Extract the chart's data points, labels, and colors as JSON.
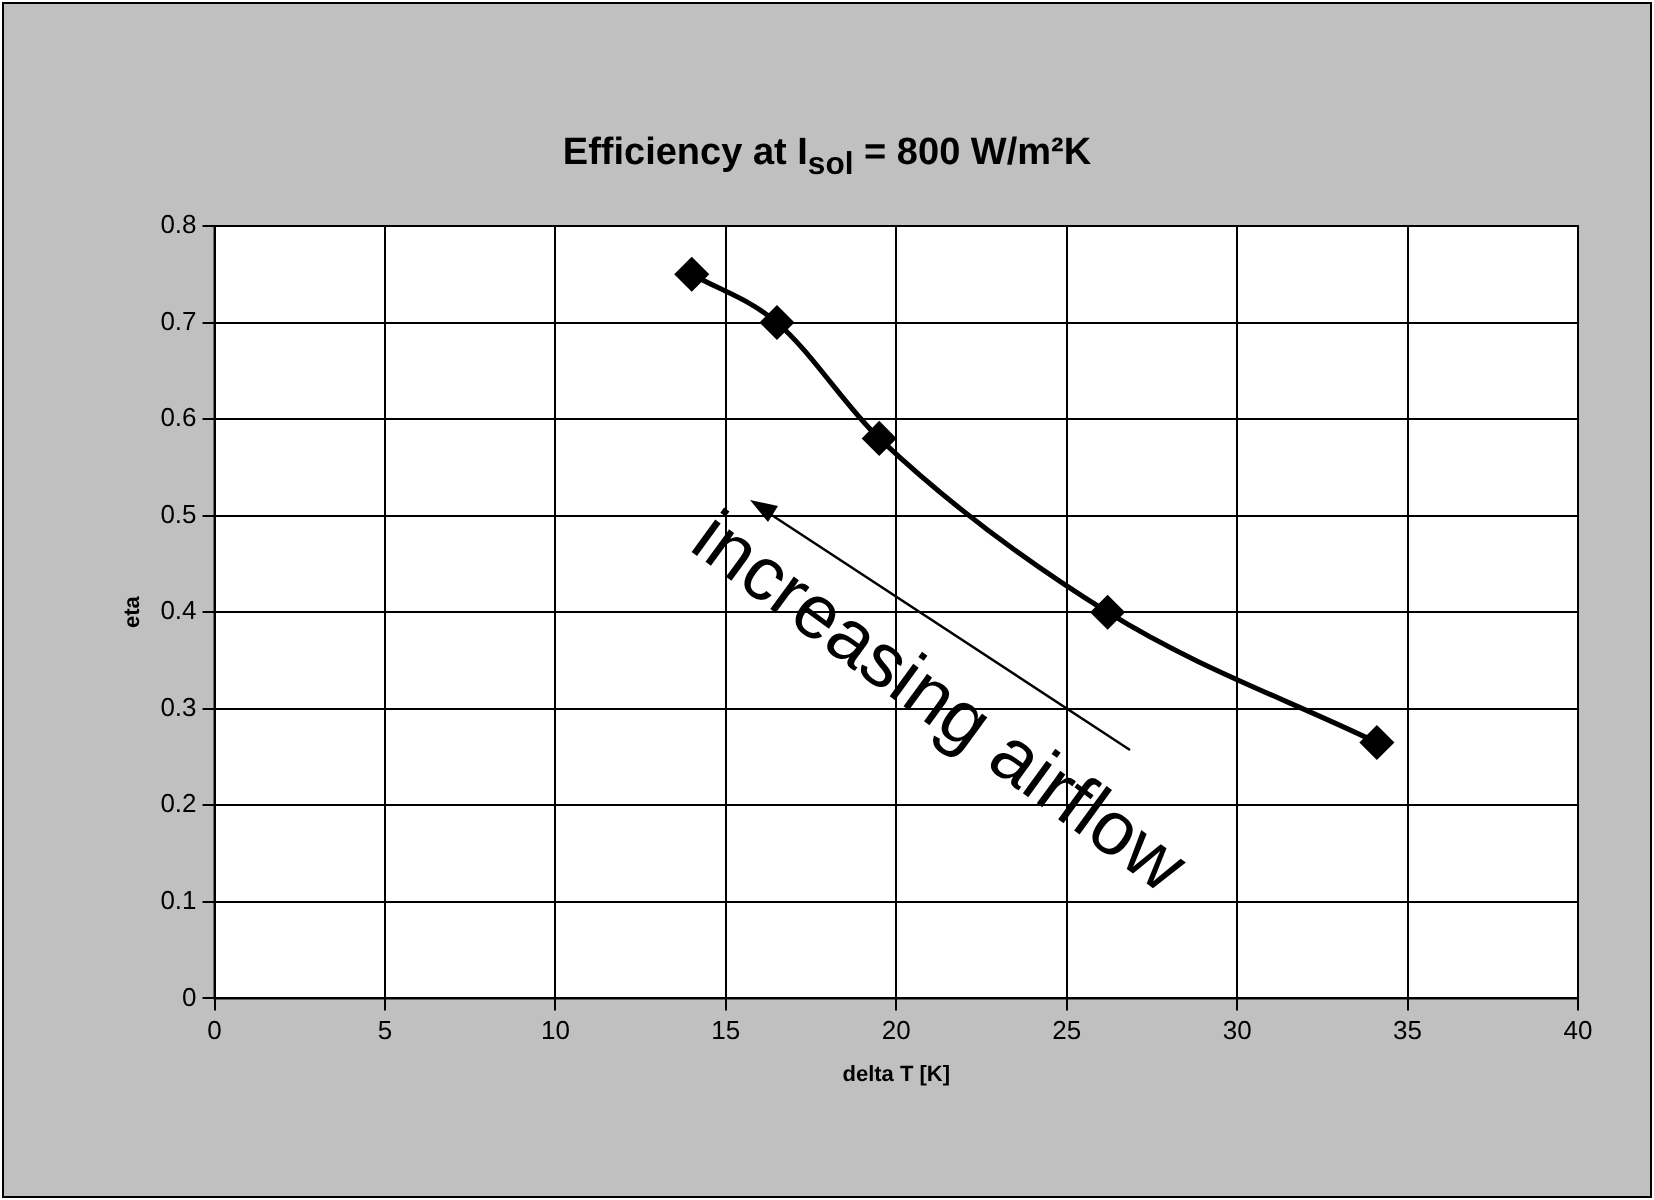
{
  "chart_data": {
    "type": "line",
    "title": "Efficiency at I$_{sol}$ = 800 W/m²K",
    "xlabel": "delta T [K]",
    "ylabel": "eta",
    "x": [
      14.0,
      16.5,
      19.5,
      26.2,
      34.1
    ],
    "series": [
      {
        "color": "#000000",
        "values": [
          0.75,
          0.7,
          0.58,
          0.4,
          0.265
        ]
      }
    ],
    "xlim": [
      0,
      40
    ],
    "xticks": [
      0,
      5,
      10,
      15,
      20,
      25,
      30,
      35,
      40
    ],
    "ylim": [
      0,
      0.8
    ],
    "yticks": [
      0,
      0.1,
      0.2,
      0.3,
      0.4,
      0.5,
      0.6,
      0.7,
      0.8
    ],
    "grid": true,
    "legend": false,
    "marker": "diamond",
    "line_style": "solid",
    "annotations": [
      "increasing airflow"
    ]
  }
}
